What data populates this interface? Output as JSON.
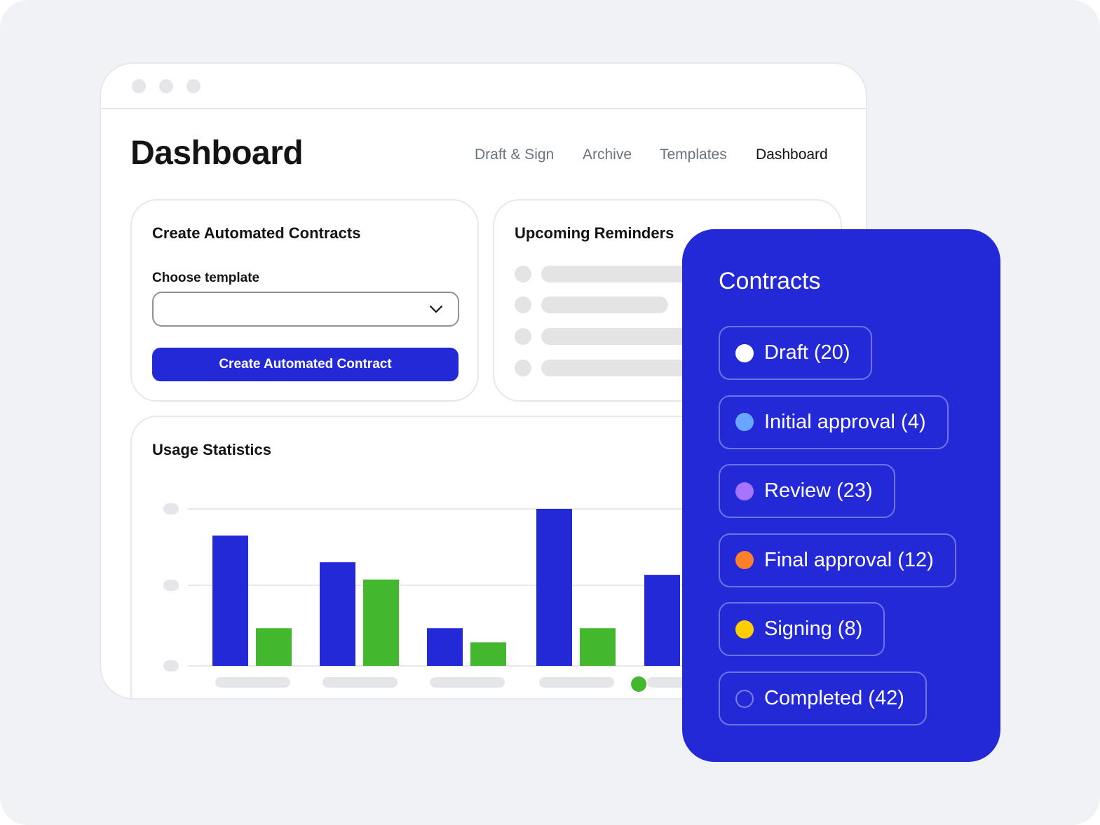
{
  "page": {
    "title": "Dashboard"
  },
  "nav": {
    "items": [
      {
        "label": "Draft & Sign",
        "active": false
      },
      {
        "label": "Archive",
        "active": false
      },
      {
        "label": "Templates",
        "active": false
      },
      {
        "label": "Dashboard",
        "active": true
      }
    ]
  },
  "create_card": {
    "title": "Create Automated Contracts",
    "select_label": "Choose template",
    "select_value": "",
    "button_label": "Create Automated Contract"
  },
  "reminders_card": {
    "title": "Upcoming Reminders"
  },
  "usage_card": {
    "title": "Usage Statistics"
  },
  "chart_data": {
    "type": "bar",
    "title": "Usage Statistics",
    "categories": [
      "",
      "",
      "",
      "",
      ""
    ],
    "ylim": [
      0,
      1
    ],
    "grid": true,
    "series": [
      {
        "color": "#2429d8",
        "values": [
          0.83,
          0.66,
          0.24,
          1.0,
          0.58
        ]
      },
      {
        "color": "#43b72e",
        "values": [
          0.24,
          0.55,
          0.15,
          0.24,
          null
        ]
      }
    ]
  },
  "contracts_panel": {
    "title": "Contracts",
    "statuses": [
      {
        "label": "Draft (20)",
        "color": "#ffffff",
        "filled": true
      },
      {
        "label": "Initial approval (4)",
        "color": "#6aa6ff",
        "filled": true
      },
      {
        "label": "Review (23)",
        "color": "#a874ff",
        "filled": true
      },
      {
        "label": "Final approval (12)",
        "color": "#ff7f2a",
        "filled": true
      },
      {
        "label": "Signing (8)",
        "color": "#ffcd00",
        "filled": true
      },
      {
        "label": "Completed (42)",
        "color": "#2429d8",
        "filled": false
      }
    ]
  },
  "colors": {
    "accent": "#2429d8",
    "green": "#43b72e",
    "background": "#f0f2f6"
  }
}
